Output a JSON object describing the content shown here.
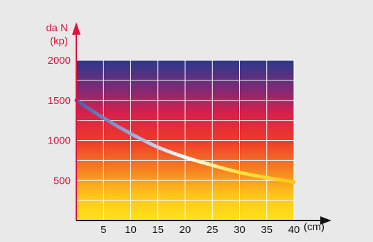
{
  "chart_data": {
    "type": "line",
    "title": "",
    "ylabel_lines": [
      "da N",
      "(kp)"
    ],
    "xlabel": "(cm)",
    "xlim": [
      0,
      40
    ],
    "ylim": [
      0,
      2000
    ],
    "x_ticks": [
      "5",
      "10",
      "15",
      "20",
      "25",
      "30",
      "35",
      "40"
    ],
    "y_ticks": [
      "500",
      "1000",
      "1500",
      "2000"
    ],
    "grid": true,
    "background_gradient": [
      "#2a3a8c",
      "#7a2a78",
      "#d8204a",
      "#ee3a2a",
      "#f57a22",
      "#ffc21a",
      "#ffe31a"
    ],
    "series": [
      {
        "x": [
          0,
          5,
          10,
          15,
          20,
          25,
          30,
          35,
          40
        ],
        "values": [
          1500,
          1280,
          1085,
          915,
          790,
          690,
          600,
          535,
          480
        ]
      }
    ],
    "line_gradient": [
      "#4a5aa8",
      "#9aa8d8",
      "#ffffff",
      "#ffe23a",
      "#f7c81a"
    ],
    "axis_color": "#e0103a",
    "grid_color": "#ffffff"
  }
}
